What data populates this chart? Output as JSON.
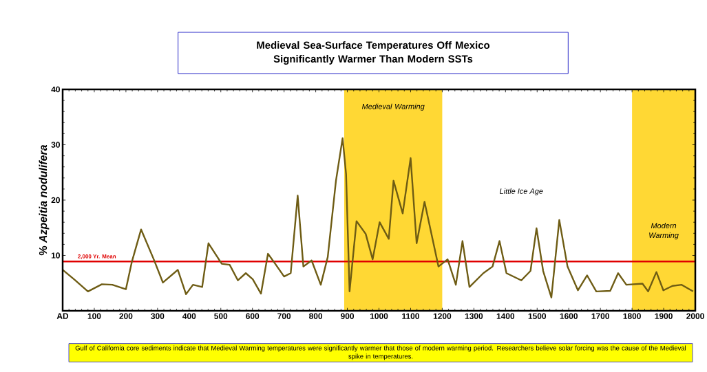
{
  "chart_data": {
    "type": "line",
    "title": "Medieval Sea-Surface Temperatures Off Mexico Significantly Warmer Than Modern SSTs",
    "ylabel": "% *Azpeitia nodulifera*",
    "x": [
      0,
      36,
      80,
      124,
      157,
      200,
      219,
      248,
      288,
      317,
      364,
      390,
      412,
      441,
      461,
      503,
      528,
      554,
      579,
      601,
      627,
      649,
      667,
      700,
      721,
      743,
      761,
      787,
      816,
      838,
      864,
      885,
      896,
      907,
      929,
      958,
      980,
      1002,
      1031,
      1046,
      1075,
      1100,
      1119,
      1144,
      1188,
      1217,
      1243,
      1264,
      1286,
      1330,
      1359,
      1381,
      1403,
      1450,
      1479,
      1498,
      1519,
      1545,
      1570,
      1596,
      1629,
      1658,
      1687,
      1731,
      1756,
      1782,
      1833,
      1851,
      1877,
      1899,
      1928,
      1957,
      1993
    ],
    "values": [
      7.4,
      5.7,
      3.5,
      4.8,
      4.7,
      3.9,
      8.9,
      14.7,
      9.3,
      5.1,
      7.4,
      3.0,
      4.7,
      4.3,
      12.2,
      8.5,
      8.3,
      5.5,
      6.8,
      5.7,
      3.1,
      10.3,
      8.9,
      6.2,
      6.8,
      20.8,
      8.0,
      9.1,
      4.7,
      9.7,
      23.5,
      31.2,
      24.7,
      3.5,
      16.2,
      13.9,
      9.3,
      16.0,
      13.0,
      23.5,
      17.6,
      27.6,
      12.2,
      19.7,
      8.0,
      9.3,
      4.7,
      12.6,
      4.3,
      6.8,
      8.0,
      12.6,
      6.8,
      5.5,
      7.2,
      14.9,
      7.2,
      2.4,
      16.4,
      8.0,
      3.7,
      6.4,
      3.5,
      3.6,
      6.8,
      4.7,
      4.9,
      3.5,
      7.0,
      3.7,
      4.5,
      4.7,
      3.5
    ],
    "color": "#6e5c14",
    "xlim": [
      0,
      2000
    ],
    "xticks": [
      {
        "value": 0,
        "label": "AD"
      },
      100,
      200,
      300,
      400,
      500,
      600,
      700,
      800,
      900,
      1000,
      1100,
      1200,
      1300,
      1400,
      1500,
      1600,
      1700,
      1800,
      1900,
      2000
    ],
    "ylim": [
      0,
      40
    ],
    "yticks": [
      10,
      20,
      30,
      40
    ],
    "bands": [
      {
        "axis": "x",
        "from": 890,
        "to": 1200,
        "label": "Medieval Warming",
        "color": "#ffd834"
      },
      {
        "axis": "x",
        "from": 1800,
        "to": 2000,
        "label": "Modern Warming",
        "color": "#ffd834"
      }
    ],
    "ref_lines": [
      {
        "axis": "y",
        "value": 8.9,
        "label": "2,000 Yr. Mean",
        "color": "#e00000"
      }
    ],
    "annotations": [
      "Little Ice Age",
      "Gulf of California core sediments indicate that Medieval Warming temperatures were significantly warmer that those of modern warming period. Researchers believe solar forcing was the cause of the Medieval spike in temperatures."
    ]
  }
}
